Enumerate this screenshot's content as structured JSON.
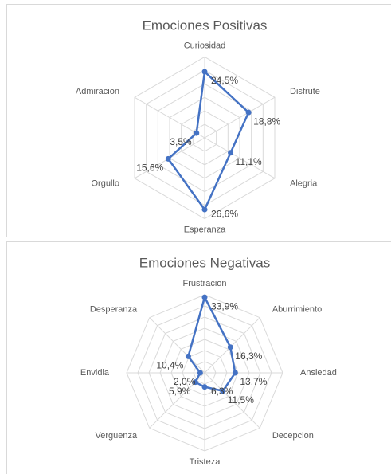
{
  "chart_data": [
    {
      "type": "radar",
      "title": "Emociones Positivas",
      "categories": [
        "Curiosidad",
        "Disfrute",
        "Alegria",
        "Esperanza",
        "Orgullo",
        "Admiracion"
      ],
      "values": [
        24.5,
        18.8,
        11.1,
        26.6,
        15.6,
        3.5
      ],
      "value_labels": [
        "24,5%",
        "18,8%",
        "11,1%",
        "26,6%",
        "15,6%",
        "3,5%"
      ],
      "color": "#4472c4",
      "rlim": [
        0,
        30
      ],
      "rticks": [
        0,
        5,
        10,
        15,
        20,
        25,
        30
      ],
      "grid": true
    },
    {
      "type": "radar",
      "title": "Emociones Negativas",
      "categories": [
        "Frustracion",
        "Aburrimiento",
        "Ansiedad",
        "Decepcion",
        "Tristeza",
        "Verguenza",
        "Envidia",
        "Desperanza"
      ],
      "values": [
        33.9,
        16.3,
        13.7,
        11.5,
        6.3,
        5.9,
        2.0,
        10.4
      ],
      "value_labels": [
        "33,9%",
        "16,3%",
        "13,7%",
        "11,5%",
        "6,3%",
        "5,9%",
        "2,0%",
        "10,4%"
      ],
      "color": "#4472c4",
      "rlim": [
        0,
        35
      ],
      "rticks": [
        0,
        5,
        10,
        15,
        20,
        25,
        30,
        35
      ],
      "grid": true
    }
  ]
}
